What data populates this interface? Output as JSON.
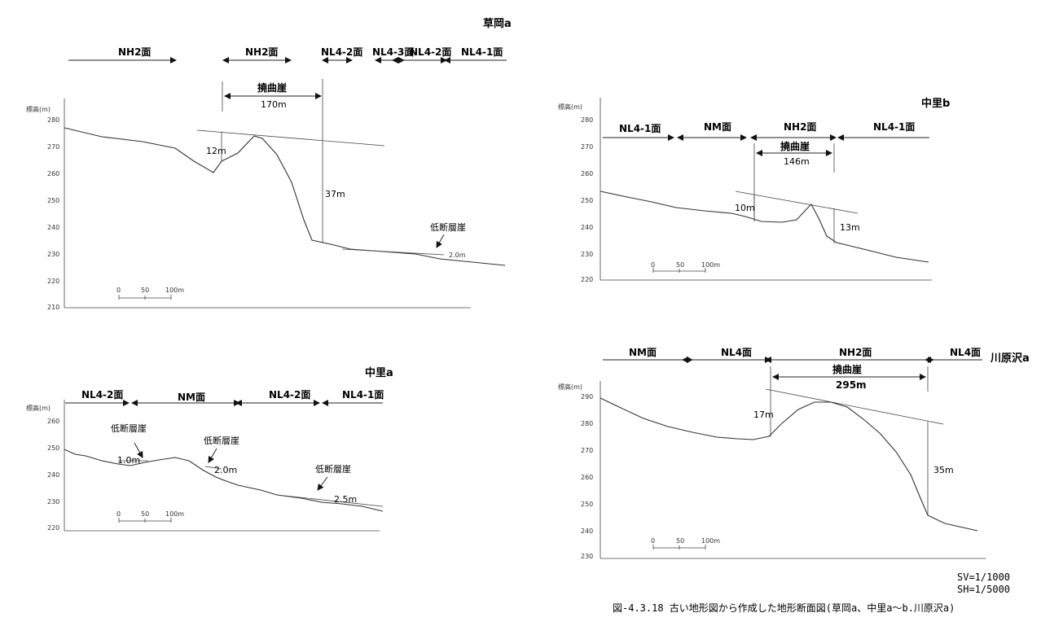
{
  "footer": {
    "sv": "SV=1/1000",
    "sh": "SH=1/5000",
    "caption": "図-4.3.18 古い地形図から作成した地形断面図(草岡a、中里a〜b.川原沢a)"
  },
  "panels": {
    "kusaoka": {
      "title": "草岡a",
      "axis_label": "標高(m)",
      "ticks": [
        "280",
        "270",
        "260",
        "250",
        "240",
        "230",
        "220",
        "210"
      ],
      "surfaces": [
        "NH2面",
        "NH2面",
        "NL4-2面",
        "NL4-3面",
        "NL4-2面",
        "NL4-1面"
      ],
      "flexure_label": "撓曲崖",
      "flexure_width": "170m",
      "h1": "12m",
      "h2": "37m",
      "fault_label": "低断層崖",
      "fault_h": "2.0m",
      "scale": [
        "0",
        "50",
        "100m"
      ]
    },
    "nakazato_b": {
      "title": "中里b",
      "axis_label": "標高(m)",
      "ticks": [
        "280",
        "270",
        "260",
        "250",
        "240",
        "230",
        "220"
      ],
      "surfaces": [
        "NL4-1面",
        "NM面",
        "NH2面",
        "NL4-1面"
      ],
      "flexure_label": "撓曲崖",
      "flexure_width": "146m",
      "h1": "10m",
      "h2": "13m",
      "scale": [
        "0",
        "50",
        "100m"
      ]
    },
    "nakazato_a": {
      "title": "中里a",
      "axis_label": "標高(m)",
      "ticks": [
        "260",
        "250",
        "240",
        "230",
        "220"
      ],
      "surfaces": [
        "NL4-2面",
        "NM面",
        "NL4-2面",
        "NL4-1面"
      ],
      "fault_label": "低断層崖",
      "fault_h": [
        "1.0m",
        "2.0m",
        "2.5m"
      ],
      "scale": [
        "0",
        "50",
        "100m"
      ]
    },
    "kawarasawa": {
      "title": "川原沢a",
      "axis_label": "標高(m)",
      "ticks": [
        "290",
        "280",
        "270",
        "260",
        "250",
        "240",
        "230"
      ],
      "surfaces": [
        "NM面",
        "NL4面",
        "NH2面",
        "NL4面"
      ],
      "flexure_label": "撓曲崖",
      "flexure_width": "295m",
      "h1": "17m",
      "h2": "35m",
      "scale": [
        "0",
        "50",
        "100m"
      ]
    }
  }
}
